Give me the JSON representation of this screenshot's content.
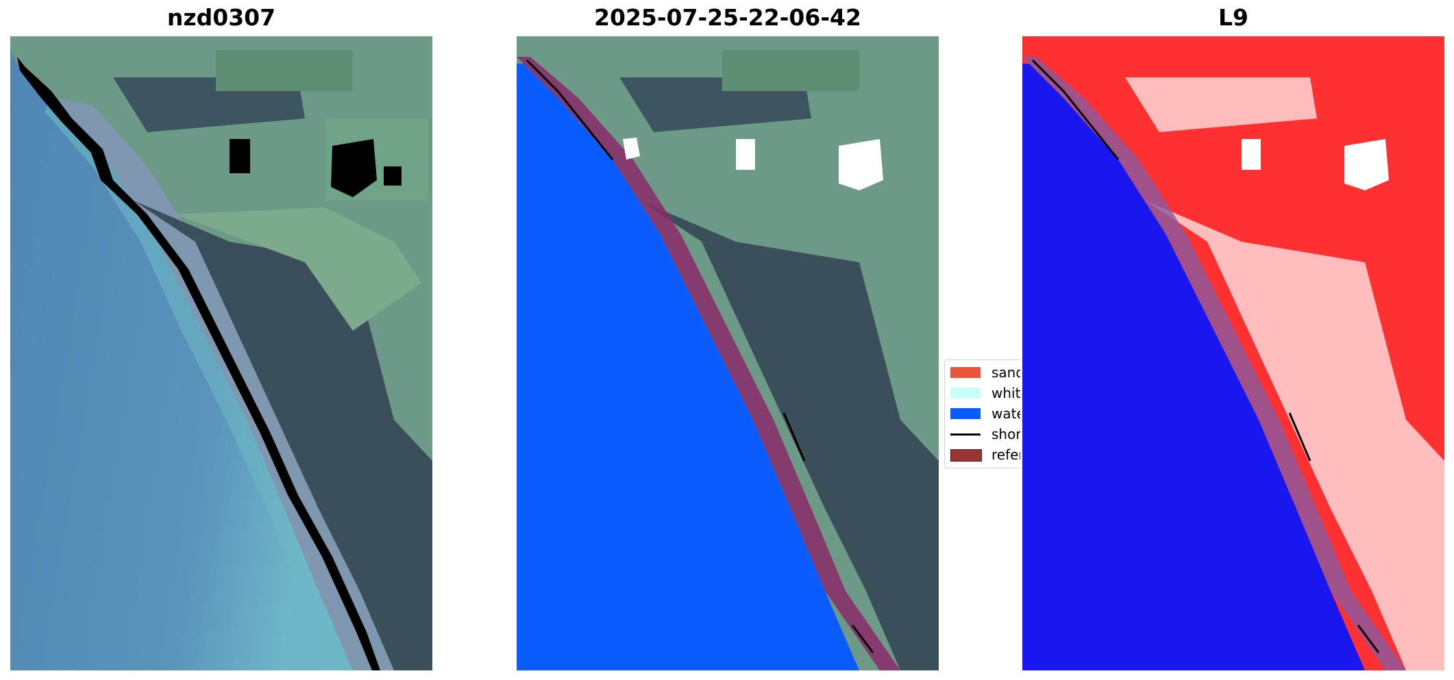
{
  "panels": [
    {
      "title": "nzd0307"
    },
    {
      "title": "2025-07-25-22-06-42"
    },
    {
      "title": "L9"
    }
  ],
  "legend": {
    "items": [
      {
        "label": "sand",
        "color": "#e8553a",
        "kind": "patch"
      },
      {
        "label": "white-water",
        "color": "#c8fffa",
        "kind": "patch"
      },
      {
        "label": "water",
        "color": "#0a5cff",
        "kind": "patch"
      },
      {
        "label": "shoreline",
        "color": "#000000",
        "kind": "line"
      },
      {
        "label": "reference shoreline buffer",
        "color": "#9a3434",
        "kind": "patch"
      }
    ]
  },
  "colors": {
    "ocean_rgb": "#5a8fb8",
    "land_rgb": "#5f7f7a",
    "forest_rgb": "#354a55",
    "water_class": "#0a5cff",
    "buffer": "#8a2a6a",
    "index_water": "#1a16f0",
    "index_land": "#ff3030"
  }
}
